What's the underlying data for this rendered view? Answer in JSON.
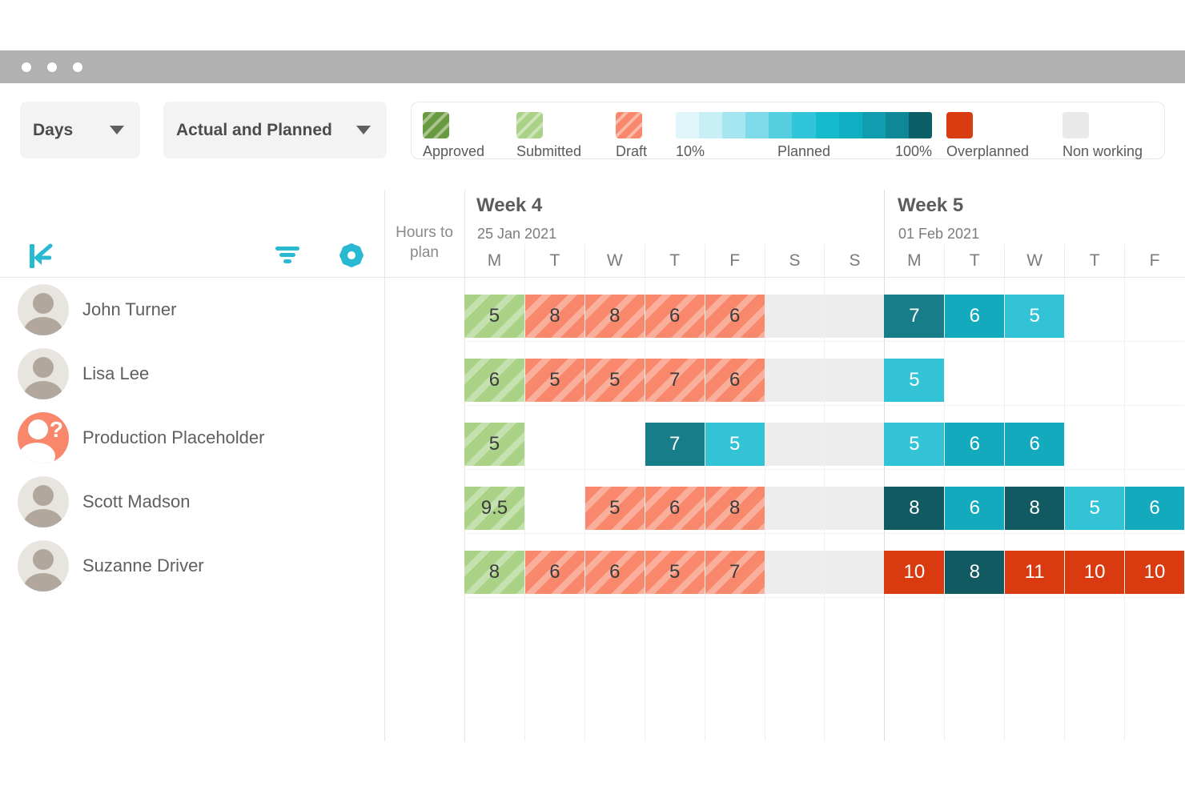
{
  "window": {
    "dot_count": 3
  },
  "toolbar": {
    "timescale_dropdown": {
      "value": "Days"
    },
    "view_dropdown": {
      "value": "Actual and Planned"
    }
  },
  "legend": {
    "items": [
      {
        "type": "swatch",
        "style": "striped",
        "label": "Approved",
        "color": "#6a9a40"
      },
      {
        "type": "swatch",
        "style": "striped",
        "label": "Submitted",
        "color": "#a9d286"
      },
      {
        "type": "swatch",
        "style": "striped",
        "label": "Draft",
        "color": "#f8876b"
      },
      {
        "type": "gradient",
        "labels": {
          "start": "10%",
          "middle": "Planned",
          "end": "100%"
        },
        "colors": [
          "#e1f6fa",
          "#c8eff5",
          "#a6e6f0",
          "#7edae8",
          "#55cfe0",
          "#30c5d9",
          "#16bacd",
          "#10aec3",
          "#0f9daf",
          "#0e8796",
          "#0b5f66"
        ]
      },
      {
        "type": "swatch",
        "style": "flat",
        "label": "Overplanned",
        "color": "#d93c10"
      },
      {
        "type": "swatch",
        "style": "flat",
        "label": "Non working",
        "color": "#e9e9e9"
      }
    ]
  },
  "sidebar": {
    "hours_to_plan_label": "Hours to plan"
  },
  "timeline": {
    "weeks": [
      {
        "title": "Week 4",
        "date": "25 Jan 2021",
        "days": [
          "M",
          "T",
          "W",
          "T",
          "F",
          "S",
          "S"
        ]
      },
      {
        "title": "Week 5",
        "date": "01 Feb 2021",
        "days": [
          "M",
          "T",
          "W",
          "T",
          "F"
        ]
      }
    ]
  },
  "palette": {
    "accent": "#29b9d2",
    "submitted": "#a9d286",
    "draft": "#f8876b",
    "nonworking": "#ededed",
    "overplanned": "#d93a10",
    "planned_by_hours": {
      "5": "#32c3d6",
      "6": "#14aabd",
      "7": "#177d89",
      "8": "#115a62"
    }
  },
  "rows": [
    {
      "name": "John Turner",
      "avatar": "photo",
      "cells": [
        {
          "v": "5",
          "t": "submitted"
        },
        {
          "v": "8",
          "t": "draft"
        },
        {
          "v": "8",
          "t": "draft"
        },
        {
          "v": "6",
          "t": "draft"
        },
        {
          "v": "6",
          "t": "draft"
        },
        {
          "t": "nonworking"
        },
        {
          "t": "nonworking"
        },
        {
          "v": "7",
          "t": "planned"
        },
        {
          "v": "6",
          "t": "planned"
        },
        {
          "v": "5",
          "t": "planned"
        },
        {
          "t": "empty"
        },
        {
          "t": "empty"
        }
      ]
    },
    {
      "name": "Lisa Lee",
      "avatar": "photo",
      "cells": [
        {
          "v": "6",
          "t": "submitted"
        },
        {
          "v": "5",
          "t": "draft"
        },
        {
          "v": "5",
          "t": "draft"
        },
        {
          "v": "7",
          "t": "draft"
        },
        {
          "v": "6",
          "t": "draft"
        },
        {
          "t": "nonworking"
        },
        {
          "t": "nonworking"
        },
        {
          "v": "5",
          "t": "planned"
        },
        {
          "t": "empty"
        },
        {
          "t": "empty"
        },
        {
          "t": "empty"
        },
        {
          "t": "empty"
        }
      ]
    },
    {
      "name": "Production Placeholder",
      "avatar": "placeholder",
      "cells": [
        {
          "v": "5",
          "t": "submitted"
        },
        {
          "t": "empty"
        },
        {
          "t": "empty"
        },
        {
          "v": "7",
          "t": "planned"
        },
        {
          "v": "5",
          "t": "planned"
        },
        {
          "t": "nonworking"
        },
        {
          "t": "nonworking"
        },
        {
          "v": "5",
          "t": "planned"
        },
        {
          "v": "6",
          "t": "planned"
        },
        {
          "v": "6",
          "t": "planned"
        },
        {
          "t": "empty"
        },
        {
          "t": "empty"
        }
      ]
    },
    {
      "name": "Scott Madson",
      "avatar": "photo",
      "cells": [
        {
          "v": "9.5",
          "t": "submitted"
        },
        {
          "t": "empty"
        },
        {
          "v": "5",
          "t": "draft"
        },
        {
          "v": "6",
          "t": "draft"
        },
        {
          "v": "8",
          "t": "draft"
        },
        {
          "t": "nonworking"
        },
        {
          "t": "nonworking"
        },
        {
          "v": "8",
          "t": "planned"
        },
        {
          "v": "6",
          "t": "planned"
        },
        {
          "v": "8",
          "t": "planned"
        },
        {
          "v": "5",
          "t": "planned"
        },
        {
          "v": "6",
          "t": "planned"
        }
      ]
    },
    {
      "name": "Suzanne Driver",
      "avatar": "photo",
      "cells": [
        {
          "v": "8",
          "t": "submitted"
        },
        {
          "v": "6",
          "t": "draft"
        },
        {
          "v": "6",
          "t": "draft"
        },
        {
          "v": "5",
          "t": "draft"
        },
        {
          "v": "7",
          "t": "draft"
        },
        {
          "t": "nonworking"
        },
        {
          "t": "nonworking"
        },
        {
          "v": "10",
          "t": "overplanned"
        },
        {
          "v": "8",
          "t": "planned"
        },
        {
          "v": "11",
          "t": "overplanned"
        },
        {
          "v": "10",
          "t": "overplanned"
        },
        {
          "v": "10",
          "t": "overplanned"
        }
      ]
    }
  ]
}
